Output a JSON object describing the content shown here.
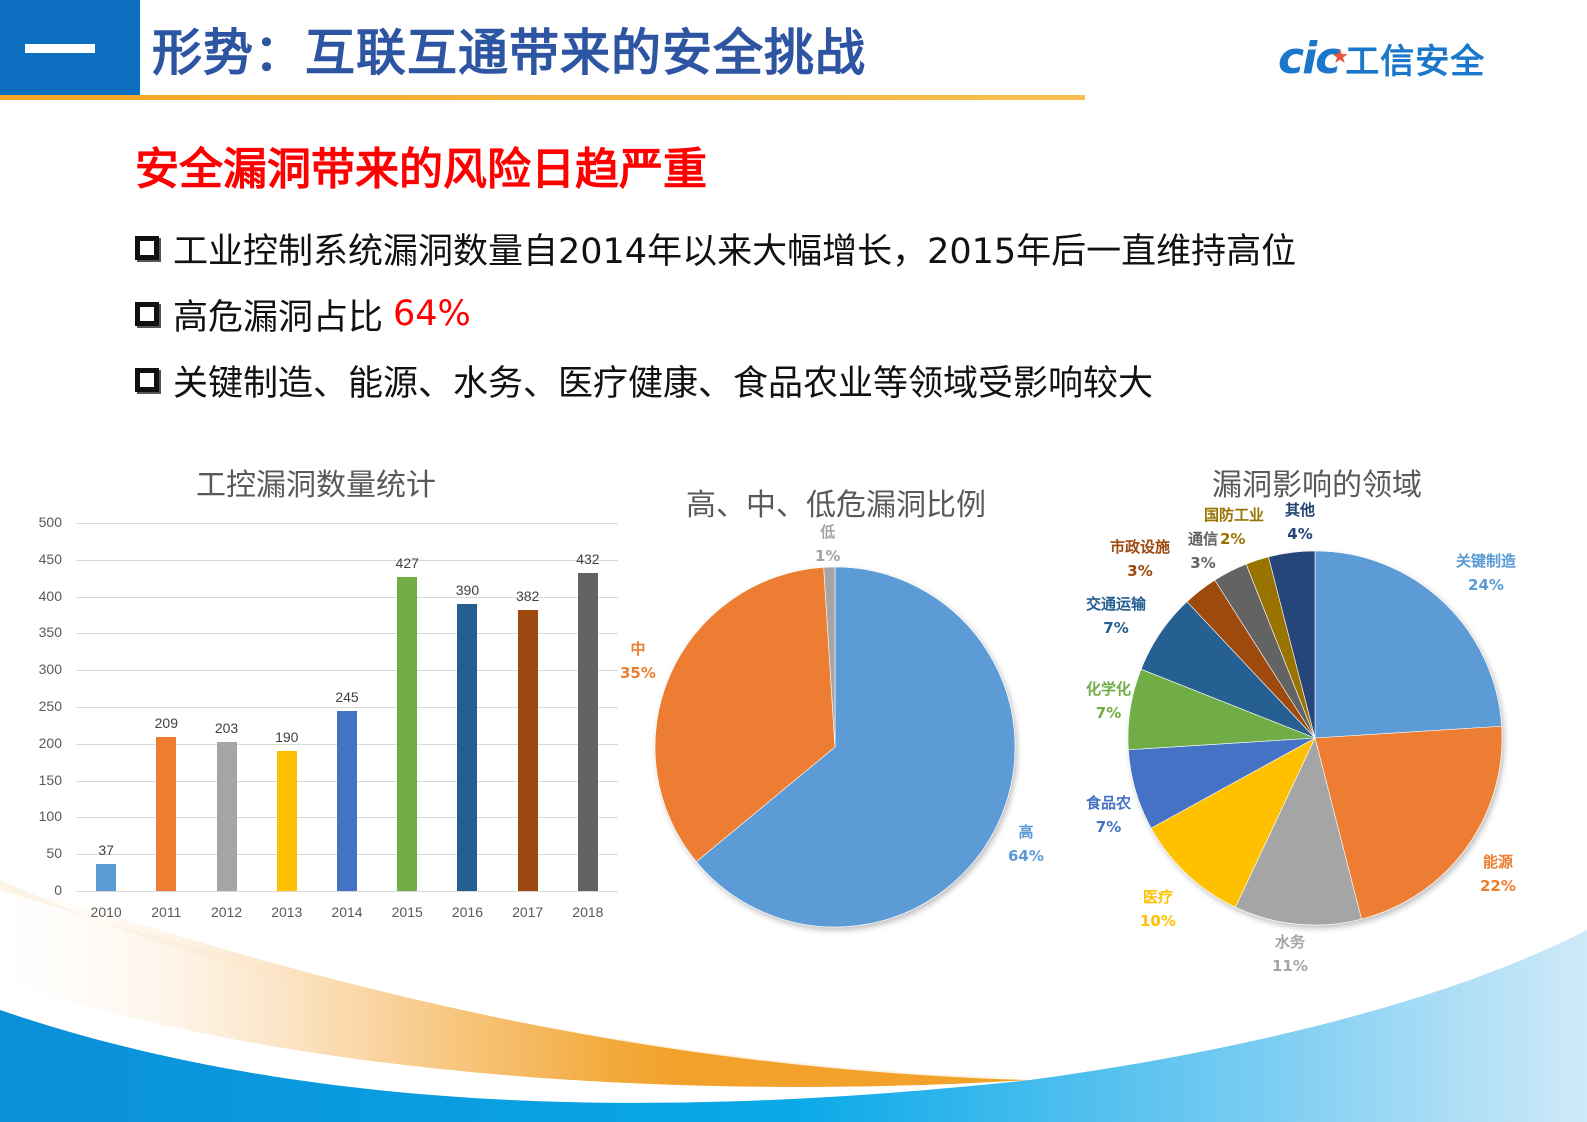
{
  "header": {
    "section_marker": "一",
    "title": "形势：互联互通带来的安全挑战",
    "logo": {
      "mark": "cic",
      "text": "工信安全"
    }
  },
  "main": {
    "subtitle": "安全漏洞带来的风险日趋严重",
    "bullets": [
      {
        "text": "工业控制系统漏洞数量自2014年以来大幅增长，2015年后一直维持高位",
        "highlight": ""
      },
      {
        "text": "高危漏洞占比",
        "highlight": "64%"
      },
      {
        "text": "关键制造、能源、水务、医疗健康、食品农业等领域受影响较大",
        "highlight": ""
      }
    ]
  },
  "colors": {
    "header_blue": "#0D6FC0",
    "title_blue": "#2E55A2",
    "accent_orange": "#F5A623",
    "alert_red": "#FF0000"
  },
  "chart_data": [
    {
      "type": "bar",
      "title": "工控漏洞数量统计",
      "categories": [
        "2010",
        "2011",
        "2012",
        "2013",
        "2014",
        "2015",
        "2016",
        "2017",
        "2018"
      ],
      "values": [
        37,
        209,
        203,
        190,
        245,
        427,
        390,
        382,
        432
      ],
      "bar_colors": [
        "#5B9BD5",
        "#ED7D31",
        "#A5A5A5",
        "#FFC000",
        "#4472C4",
        "#70AD47",
        "#255E91",
        "#9E480E",
        "#636363"
      ],
      "xlabel": "",
      "ylabel": "",
      "ylim": [
        0,
        500
      ],
      "yticks": [
        0,
        50,
        100,
        150,
        200,
        250,
        300,
        350,
        400,
        450,
        500
      ],
      "grid": true,
      "data_labels": true
    },
    {
      "type": "pie",
      "title": "高、中、低危漏洞比例",
      "categories": [
        "高",
        "中",
        "低"
      ],
      "values": [
        64,
        35,
        1
      ],
      "labels": [
        "64%",
        "35%",
        "1%"
      ],
      "colors": [
        "#5B9BD5",
        "#ED7D31",
        "#A5A5A5"
      ]
    },
    {
      "type": "pie",
      "title": "漏洞影响的领域",
      "categories": [
        "关键制造",
        "能源",
        "水务",
        "医疗",
        "食品农业",
        "化学化工",
        "交通运输",
        "市政设施",
        "通信",
        "国防工业",
        "其他"
      ],
      "visible_labels": [
        "关键制造",
        "能源",
        "水务",
        "医疗",
        "食品农",
        "化学化",
        "交通运输",
        "市政设施",
        "通信",
        "国防工业",
        "其他"
      ],
      "values": [
        24,
        22,
        11,
        10,
        7,
        7,
        7,
        3,
        3,
        2,
        4
      ],
      "labels": [
        "24%",
        "22%",
        "11%",
        "10%",
        "7%",
        "7%",
        "7%",
        "3%",
        "3%",
        "2%",
        "4%"
      ],
      "colors": [
        "#5B9BD5",
        "#ED7D31",
        "#A5A5A5",
        "#FFC000",
        "#4472C4",
        "#70AD47",
        "#255E91",
        "#9E480E",
        "#636363",
        "#997300",
        "#264478"
      ]
    }
  ]
}
